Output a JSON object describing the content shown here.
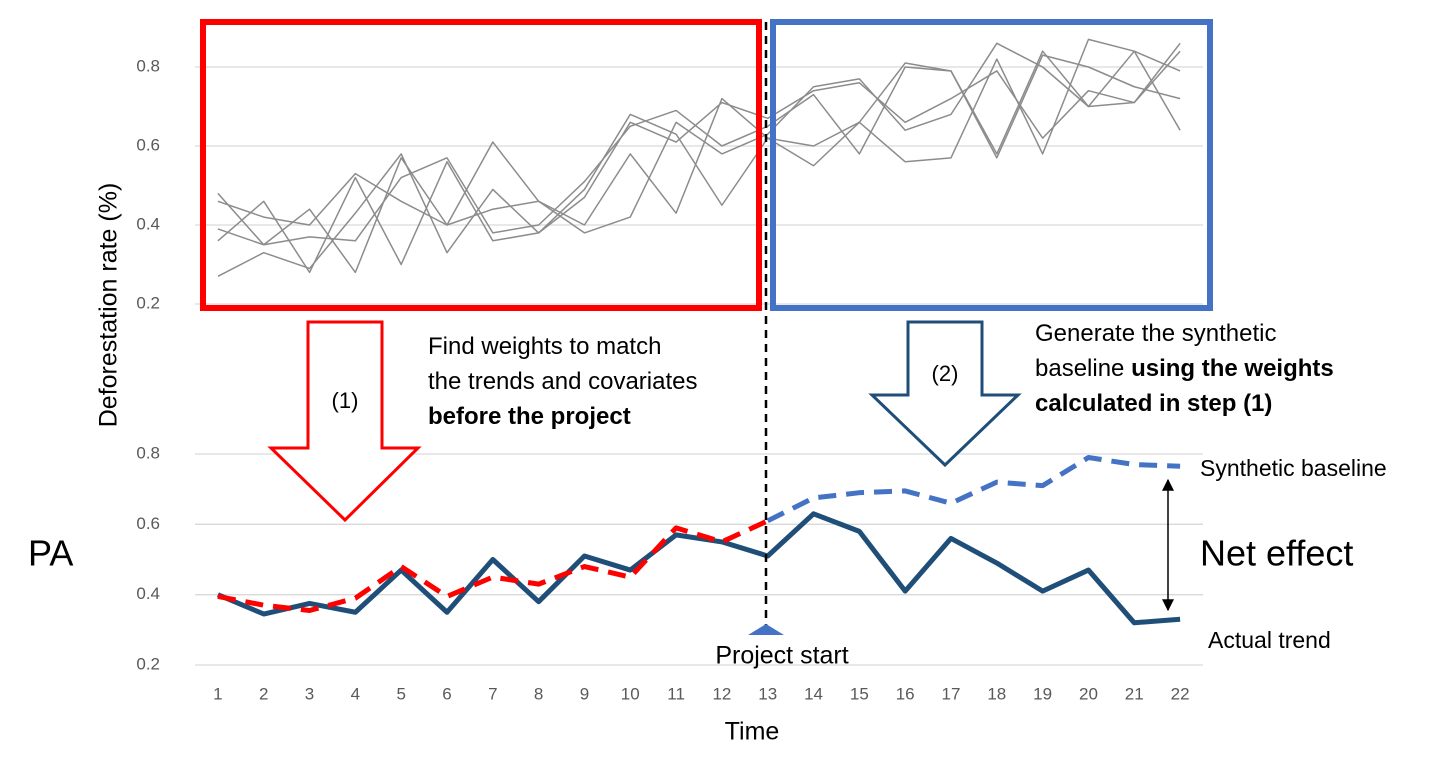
{
  "chart_data": [
    {
      "type": "line",
      "ylabel": "Deforestation rate (%)",
      "x": [
        1,
        2,
        3,
        4,
        5,
        6,
        7,
        8,
        9,
        10,
        11,
        12,
        13,
        14,
        15,
        16,
        17,
        18,
        19,
        20,
        21,
        22
      ],
      "xlim": [
        0.5,
        22.5
      ],
      "ylim": [
        0.2,
        0.9
      ],
      "yticks": [
        0.2,
        0.4,
        0.6,
        0.8
      ],
      "grid": true,
      "series": [
        {
          "color": "#8c8c8c",
          "values": [
            0.48,
            0.35,
            0.44,
            0.28,
            0.57,
            0.4,
            0.61,
            0.46,
            0.4,
            0.58,
            0.43,
            0.72,
            0.62,
            0.55,
            0.66,
            0.81,
            0.79,
            0.58,
            0.84,
            0.7,
            0.71,
            0.84
          ]
        },
        {
          "color": "#8c8c8c",
          "values": [
            0.46,
            0.42,
            0.4,
            0.53,
            0.46,
            0.4,
            0.44,
            0.46,
            0.38,
            0.42,
            0.66,
            0.58,
            0.63,
            0.75,
            0.77,
            0.64,
            0.68,
            0.86,
            0.8,
            0.7,
            0.84,
            0.79
          ]
        },
        {
          "color": "#8c8c8c",
          "values": [
            0.36,
            0.46,
            0.28,
            0.52,
            0.3,
            0.56,
            0.36,
            0.38,
            0.49,
            0.68,
            0.63,
            0.45,
            0.62,
            0.6,
            0.66,
            0.56,
            0.57,
            0.82,
            0.58,
            0.87,
            0.84,
            0.64
          ]
        },
        {
          "color": "#8c8c8c",
          "values": [
            0.39,
            0.35,
            0.37,
            0.36,
            0.52,
            0.57,
            0.38,
            0.4,
            0.51,
            0.65,
            0.69,
            0.6,
            0.65,
            0.73,
            0.58,
            0.8,
            0.79,
            0.57,
            0.83,
            0.8,
            0.75,
            0.72
          ]
        },
        {
          "color": "#8c8c8c",
          "values": [
            0.27,
            0.33,
            0.29,
            0.43,
            0.58,
            0.33,
            0.49,
            0.38,
            0.47,
            0.66,
            0.61,
            0.71,
            0.67,
            0.74,
            0.76,
            0.66,
            0.72,
            0.79,
            0.62,
            0.74,
            0.71,
            0.86
          ]
        }
      ]
    },
    {
      "type": "line",
      "xlabel": "Time",
      "x": [
        1,
        2,
        3,
        4,
        5,
        6,
        7,
        8,
        9,
        10,
        11,
        12,
        13,
        14,
        15,
        16,
        17,
        18,
        19,
        20,
        21,
        22
      ],
      "xticks": [
        1,
        2,
        3,
        4,
        5,
        6,
        7,
        8,
        9,
        10,
        11,
        12,
        13,
        14,
        15,
        16,
        17,
        18,
        19,
        20,
        21,
        22
      ],
      "xlim": [
        0.5,
        22.5
      ],
      "ylim": [
        0.2,
        0.8
      ],
      "yticks": [
        0.2,
        0.4,
        0.6,
        0.8
      ],
      "grid": true,
      "series": [
        {
          "name": "Actual trend",
          "color": "#1f4e79",
          "dashed": false,
          "values": [
            0.4,
            0.345,
            0.375,
            0.35,
            0.47,
            0.35,
            0.5,
            0.38,
            0.51,
            0.47,
            0.57,
            0.55,
            0.51,
            0.63,
            0.58,
            0.41,
            0.56,
            0.49,
            0.41,
            0.47,
            0.32,
            0.33
          ]
        },
        {
          "color": "#ff0000",
          "dashed": true,
          "values": [
            0.395,
            0.37,
            0.355,
            0.39,
            0.48,
            0.395,
            0.45,
            0.43,
            0.48,
            0.45,
            0.59,
            0.55,
            0.61,
            null,
            null,
            null,
            null,
            null,
            null,
            null,
            null,
            null
          ]
        },
        {
          "name": "Synthetic baseline",
          "color": "#4472c4",
          "dashed": true,
          "values": [
            null,
            null,
            null,
            null,
            null,
            null,
            null,
            null,
            null,
            null,
            null,
            null,
            0.61,
            0.675,
            0.69,
            0.695,
            0.66,
            0.72,
            0.71,
            0.79,
            0.77,
            0.765
          ]
        }
      ]
    }
  ],
  "labels": {
    "pa": "PA",
    "net_effect": "Net effect",
    "project_start": "Project start",
    "step1": "(1)",
    "step2": "(2)"
  },
  "notes": [
    {
      "lines": [
        [
          {
            "text": "Find weights to match"
          }
        ],
        [
          {
            "text": "the trends and covariates"
          }
        ],
        [
          {
            "text": "before the project",
            "bold": true
          }
        ]
      ]
    },
    {
      "lines": [
        [
          {
            "text": "Generate the synthetic"
          }
        ],
        [
          {
            "text": "baseline "
          },
          {
            "text": "using the weights",
            "bold": true
          }
        ],
        [
          {
            "text": "calculated in step (1)",
            "bold": true
          }
        ]
      ]
    }
  ]
}
